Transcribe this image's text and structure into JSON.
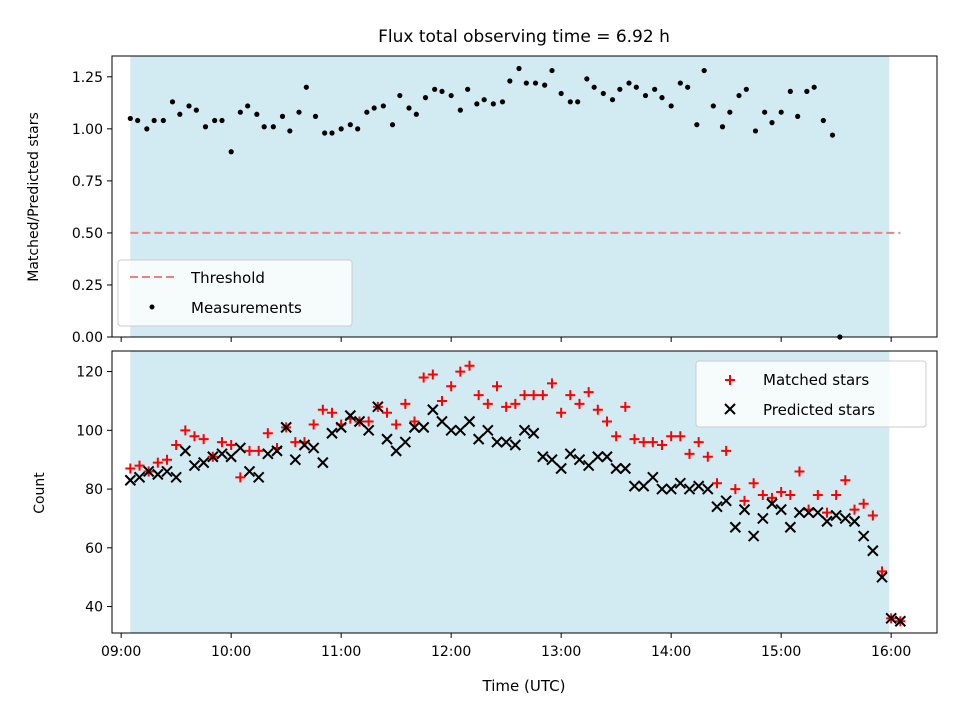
{
  "chart_data": [
    {
      "type": "scatter",
      "title": "Flux total observing time = 6.92 h",
      "xlabel": "",
      "ylabel": "Matched/Predicted stars",
      "ylim": [
        0.0,
        1.35
      ],
      "xlim": [
        "08:55",
        "16:25"
      ],
      "yticks": [
        "0.00",
        "0.25",
        "0.50",
        "0.75",
        "1.00",
        "1.25"
      ],
      "shaded_interval": [
        "09:05",
        "15:59"
      ],
      "shade_color": "#add8e6",
      "legend_position": "lower-left",
      "threshold": {
        "name": "Threshold",
        "value": 0.5,
        "from": "09:05",
        "to": "16:05",
        "color": "#f08080",
        "style": "dashed"
      },
      "measurements": {
        "name": "Measurements",
        "color": "#000000",
        "points": [
          [
            "09:05",
            1.05
          ],
          [
            "09:09",
            1.04
          ],
          [
            "09:14",
            1.0
          ],
          [
            "09:18",
            1.04
          ],
          [
            "09:23",
            1.04
          ],
          [
            "09:28",
            1.13
          ],
          [
            "09:32",
            1.07
          ],
          [
            "09:37",
            1.11
          ],
          [
            "09:41",
            1.09
          ],
          [
            "09:46",
            1.01
          ],
          [
            "09:51",
            1.04
          ],
          [
            "09:55",
            1.04
          ],
          [
            "10:00",
            0.89
          ],
          [
            "10:05",
            1.08
          ],
          [
            "10:09",
            1.11
          ],
          [
            "10:14",
            1.07
          ],
          [
            "10:18",
            1.01
          ],
          [
            "10:23",
            1.01
          ],
          [
            "10:28",
            1.06
          ],
          [
            "10:32",
            0.99
          ],
          [
            "10:37",
            1.08
          ],
          [
            "10:41",
            1.2
          ],
          [
            "10:46",
            1.06
          ],
          [
            "10:51",
            0.98
          ],
          [
            "10:55",
            0.98
          ],
          [
            "11:00",
            1.0
          ],
          [
            "11:05",
            1.02
          ],
          [
            "11:09",
            1.0
          ],
          [
            "11:14",
            1.08
          ],
          [
            "11:18",
            1.1
          ],
          [
            "11:23",
            1.11
          ],
          [
            "11:28",
            1.02
          ],
          [
            "11:32",
            1.16
          ],
          [
            "11:37",
            1.1
          ],
          [
            "11:41",
            1.07
          ],
          [
            "11:46",
            1.15
          ],
          [
            "11:51",
            1.19
          ],
          [
            "11:55",
            1.18
          ],
          [
            "12:00",
            1.16
          ],
          [
            "12:05",
            1.09
          ],
          [
            "12:09",
            1.19
          ],
          [
            "12:14",
            1.12
          ],
          [
            "12:18",
            1.14
          ],
          [
            "12:23",
            1.12
          ],
          [
            "12:28",
            1.13
          ],
          [
            "12:32",
            1.23
          ],
          [
            "12:37",
            1.29
          ],
          [
            "12:41",
            1.22
          ],
          [
            "12:46",
            1.22
          ],
          [
            "12:51",
            1.21
          ],
          [
            "12:55",
            1.28
          ],
          [
            "13:00",
            1.17
          ],
          [
            "13:05",
            1.13
          ],
          [
            "13:09",
            1.13
          ],
          [
            "13:14",
            1.24
          ],
          [
            "13:18",
            1.2
          ],
          [
            "13:23",
            1.17
          ],
          [
            "13:28",
            1.14
          ],
          [
            "13:32",
            1.19
          ],
          [
            "13:37",
            1.22
          ],
          [
            "13:41",
            1.2
          ],
          [
            "13:46",
            1.16
          ],
          [
            "13:51",
            1.19
          ],
          [
            "13:55",
            1.15
          ],
          [
            "14:00",
            1.11
          ],
          [
            "14:05",
            1.22
          ],
          [
            "14:09",
            1.2
          ],
          [
            "14:14",
            1.02
          ],
          [
            "14:18",
            1.28
          ],
          [
            "14:23",
            1.11
          ],
          [
            "14:28",
            1.01
          ],
          [
            "14:32",
            1.08
          ],
          [
            "14:37",
            1.16
          ],
          [
            "14:41",
            1.19
          ],
          [
            "14:46",
            0.99
          ],
          [
            "14:51",
            1.08
          ],
          [
            "14:55",
            1.03
          ],
          [
            "15:00",
            1.08
          ],
          [
            "15:05",
            1.18
          ],
          [
            "15:09",
            1.06
          ],
          [
            "15:14",
            1.18
          ],
          [
            "15:18",
            1.2
          ],
          [
            "15:23",
            1.04
          ],
          [
            "15:28",
            0.97
          ],
          [
            "15:32",
            0.0
          ]
        ]
      }
    },
    {
      "type": "scatter",
      "xlabel": "Time (UTC)",
      "ylabel": "Count",
      "ylim": [
        31,
        127
      ],
      "xlim": [
        "08:55",
        "16:25"
      ],
      "xticks": [
        "09:00",
        "10:00",
        "11:00",
        "12:00",
        "13:00",
        "14:00",
        "15:00",
        "16:00"
      ],
      "yticks": [
        "40",
        "60",
        "80",
        "100",
        "120"
      ],
      "shaded_interval": [
        "09:05",
        "15:59"
      ],
      "shade_color": "#add8e6",
      "legend_position": "top-right",
      "series": [
        {
          "name": "Matched stars",
          "marker": "plus",
          "color": "#ff0000",
          "points": [
            [
              "09:05",
              87
            ],
            [
              "09:10",
              88
            ],
            [
              "09:15",
              86
            ],
            [
              "09:20",
              89
            ],
            [
              "09:25",
              90
            ],
            [
              "09:30",
              95
            ],
            [
              "09:35",
              100
            ],
            [
              "09:40",
              98
            ],
            [
              "09:45",
              97
            ],
            [
              "09:50",
              91
            ],
            [
              "09:55",
              96
            ],
            [
              "10:00",
              95
            ],
            [
              "10:05",
              84
            ],
            [
              "10:10",
              93
            ],
            [
              "10:15",
              93
            ],
            [
              "10:20",
              99
            ],
            [
              "10:25",
              94
            ],
            [
              "10:30",
              101
            ],
            [
              "10:35",
              96
            ],
            [
              "10:40",
              96
            ],
            [
              "10:45",
              102
            ],
            [
              "10:50",
              107
            ],
            [
              "10:55",
              106
            ],
            [
              "11:00",
              102
            ],
            [
              "11:05",
              104
            ],
            [
              "11:10",
              103
            ],
            [
              "11:15",
              103
            ],
            [
              "11:20",
              108
            ],
            [
              "11:25",
              106
            ],
            [
              "11:30",
              102
            ],
            [
              "11:35",
              109
            ],
            [
              "11:40",
              103
            ],
            [
              "11:45",
              118
            ],
            [
              "11:50",
              119
            ],
            [
              "11:55",
              110
            ],
            [
              "12:00",
              115
            ],
            [
              "12:05",
              120
            ],
            [
              "12:10",
              122
            ],
            [
              "12:15",
              112
            ],
            [
              "12:20",
              109
            ],
            [
              "12:25",
              115
            ],
            [
              "12:30",
              108
            ],
            [
              "12:35",
              109
            ],
            [
              "12:40",
              112
            ],
            [
              "12:45",
              112
            ],
            [
              "12:50",
              112
            ],
            [
              "12:55",
              116
            ],
            [
              "13:00",
              106
            ],
            [
              "13:05",
              112
            ],
            [
              "13:10",
              109
            ],
            [
              "13:15",
              113
            ],
            [
              "13:20",
              107
            ],
            [
              "13:25",
              103
            ],
            [
              "13:30",
              98
            ],
            [
              "13:35",
              108
            ],
            [
              "13:40",
              97
            ],
            [
              "13:45",
              96
            ],
            [
              "13:50",
              96
            ],
            [
              "13:55",
              95
            ],
            [
              "14:00",
              98
            ],
            [
              "14:05",
              98
            ],
            [
              "14:10",
              92
            ],
            [
              "14:15",
              96
            ],
            [
              "14:20",
              91
            ],
            [
              "14:25",
              82
            ],
            [
              "14:30",
              93
            ],
            [
              "14:35",
              80
            ],
            [
              "14:40",
              76
            ],
            [
              "14:45",
              82
            ],
            [
              "14:50",
              78
            ],
            [
              "14:55",
              77
            ],
            [
              "15:00",
              79
            ],
            [
              "15:05",
              78
            ],
            [
              "15:10",
              86
            ],
            [
              "15:15",
              73
            ],
            [
              "15:20",
              78
            ],
            [
              "15:25",
              72
            ],
            [
              "15:30",
              78
            ],
            [
              "15:35",
              83
            ],
            [
              "15:40",
              73
            ],
            [
              "15:45",
              75
            ],
            [
              "15:50",
              71
            ],
            [
              "15:55",
              52
            ],
            [
              "16:00",
              36
            ],
            [
              "16:05",
              35
            ]
          ]
        },
        {
          "name": "Predicted stars",
          "marker": "x",
          "color": "#000000",
          "points": [
            [
              "09:05",
              83
            ],
            [
              "09:10",
              84
            ],
            [
              "09:15",
              86
            ],
            [
              "09:20",
              85
            ],
            [
              "09:25",
              86
            ],
            [
              "09:30",
              84
            ],
            [
              "09:35",
              93
            ],
            [
              "09:40",
              88
            ],
            [
              "09:45",
              89
            ],
            [
              "09:50",
              91
            ],
            [
              "09:55",
              92
            ],
            [
              "10:00",
              91
            ],
            [
              "10:05",
              94
            ],
            [
              "10:10",
              86
            ],
            [
              "10:15",
              84
            ],
            [
              "10:20",
              92
            ],
            [
              "10:25",
              93
            ],
            [
              "10:30",
              101
            ],
            [
              "10:35",
              90
            ],
            [
              "10:40",
              95
            ],
            [
              "10:45",
              94
            ],
            [
              "10:50",
              89
            ],
            [
              "10:55",
              99
            ],
            [
              "11:00",
              101
            ],
            [
              "11:05",
              105
            ],
            [
              "11:10",
              103
            ],
            [
              "11:15",
              100
            ],
            [
              "11:20",
              108
            ],
            [
              "11:25",
              97
            ],
            [
              "11:30",
              93
            ],
            [
              "11:35",
              96
            ],
            [
              "11:40",
              101
            ],
            [
              "11:45",
              101
            ],
            [
              "11:50",
              107
            ],
            [
              "11:55",
              103
            ],
            [
              "12:00",
              100
            ],
            [
              "12:05",
              100
            ],
            [
              "12:10",
              103
            ],
            [
              "12:15",
              97
            ],
            [
              "12:20",
              100
            ],
            [
              "12:25",
              96
            ],
            [
              "12:30",
              96
            ],
            [
              "12:35",
              95
            ],
            [
              "12:40",
              100
            ],
            [
              "12:45",
              99
            ],
            [
              "12:50",
              91
            ],
            [
              "12:55",
              90
            ],
            [
              "13:00",
              87
            ],
            [
              "13:05",
              92
            ],
            [
              "13:10",
              90
            ],
            [
              "13:15",
              88
            ],
            [
              "13:20",
              91
            ],
            [
              "13:25",
              91
            ],
            [
              "13:30",
              87
            ],
            [
              "13:35",
              87
            ],
            [
              "13:40",
              81
            ],
            [
              "13:45",
              81
            ],
            [
              "13:50",
              84
            ],
            [
              "13:55",
              80
            ],
            [
              "14:00",
              80
            ],
            [
              "14:05",
              82
            ],
            [
              "14:10",
              80
            ],
            [
              "14:15",
              81
            ],
            [
              "14:20",
              80
            ],
            [
              "14:25",
              74
            ],
            [
              "14:30",
              76
            ],
            [
              "14:35",
              67
            ],
            [
              "14:40",
              73
            ],
            [
              "14:45",
              64
            ],
            [
              "14:50",
              70
            ],
            [
              "14:55",
              75
            ],
            [
              "15:00",
              73
            ],
            [
              "15:05",
              67
            ],
            [
              "15:10",
              72
            ],
            [
              "15:15",
              72
            ],
            [
              "15:20",
              72
            ],
            [
              "15:25",
              69
            ],
            [
              "15:30",
              71
            ],
            [
              "15:35",
              70
            ],
            [
              "15:40",
              69
            ],
            [
              "15:45",
              64
            ],
            [
              "15:50",
              59
            ],
            [
              "15:55",
              50
            ],
            [
              "16:00",
              36
            ],
            [
              "16:05",
              35
            ]
          ]
        }
      ]
    }
  ]
}
